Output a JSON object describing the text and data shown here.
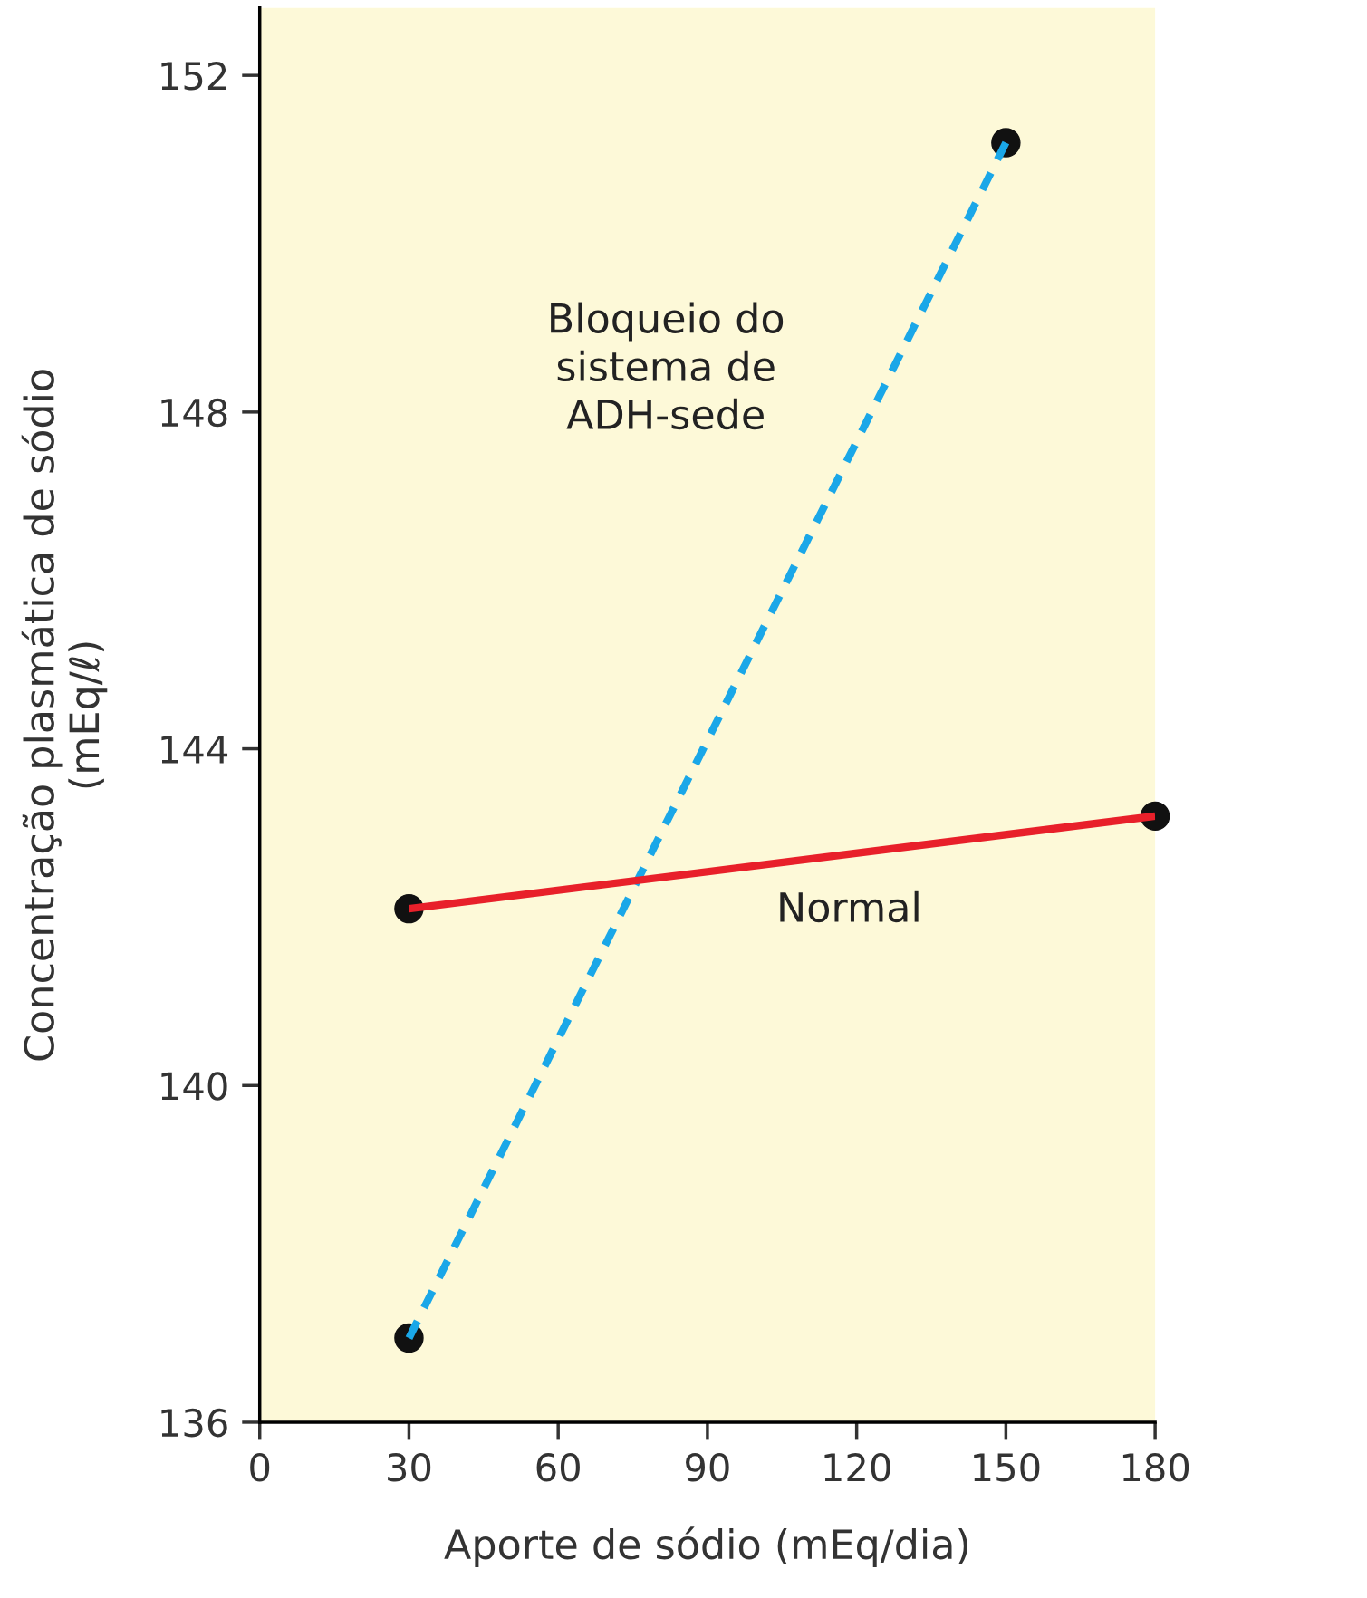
{
  "chart_data": {
    "type": "line",
    "xlabel": "Aporte de sódio (mEq/dia)",
    "ylabel": "Concentração plasmática de sódio\n(mEq/ℓ)",
    "xlim": [
      0,
      180
    ],
    "ylim": [
      136,
      152.8
    ],
    "xticks": [
      0,
      30,
      60,
      90,
      120,
      150,
      180
    ],
    "yticks": [
      136,
      140,
      144,
      148,
      152
    ],
    "grid": false,
    "legend": false,
    "series": [
      {
        "name": "Bloqueio do\nsistema de\nADH-sede",
        "color": "#1aa7e8",
        "line_style": "dashed",
        "x": [
          30,
          150
        ],
        "values": [
          137.0,
          151.2
        ]
      },
      {
        "name": "Normal",
        "color": "#e8202a",
        "line_style": "solid",
        "x": [
          30,
          180
        ],
        "values": [
          142.1,
          143.2
        ]
      },
      {
        "type": "scatter",
        "color": "#111111",
        "marker": "circle",
        "x": [
          30,
          150,
          30,
          180
        ],
        "values": [
          137.0,
          151.2,
          142.1,
          143.2
        ]
      }
    ]
  }
}
